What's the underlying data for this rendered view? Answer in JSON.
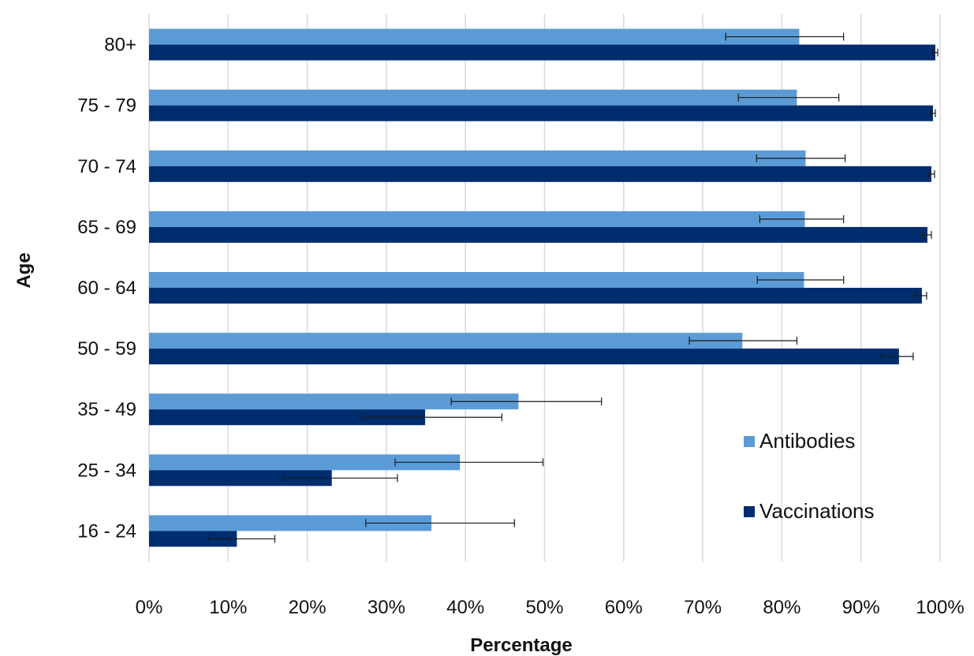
{
  "chart_data": {
    "type": "bar",
    "orientation": "horizontal",
    "title": "",
    "xlabel": "Percentage",
    "ylabel": "Age",
    "xlim": [
      0,
      100
    ],
    "x_ticks": [
      "0%",
      "10%",
      "20%",
      "30%",
      "40%",
      "50%",
      "60%",
      "70%",
      "80%",
      "90%",
      "100%"
    ],
    "grid": "vertical",
    "legend_position": "right",
    "categories": [
      "80+",
      "75 - 79",
      "70 - 74",
      "65 - 69",
      "60 - 64",
      "50 - 59",
      "35 - 49",
      "25 - 34",
      "16 - 24"
    ],
    "series": [
      {
        "name": "Antibodies",
        "color": "#5b9bd5",
        "values": [
          82.2,
          81.9,
          83.0,
          82.9,
          82.8,
          75.0,
          46.7,
          39.3,
          35.7
        ],
        "error_low": [
          72.9,
          74.5,
          76.8,
          77.2,
          76.9,
          68.3,
          38.2,
          31.1,
          27.4
        ],
        "error_high": [
          87.8,
          87.2,
          88.0,
          87.8,
          87.8,
          81.9,
          57.2,
          49.8,
          46.2
        ]
      },
      {
        "name": "Vaccinations",
        "color": "#002d6e",
        "values": [
          99.4,
          99.1,
          98.9,
          98.4,
          97.7,
          94.8,
          34.9,
          23.1,
          11.1
        ],
        "error_low": [
          99.1,
          98.8,
          98.5,
          97.8,
          96.8,
          92.6,
          26.9,
          17.0,
          7.6
        ],
        "error_high": [
          99.7,
          99.4,
          99.3,
          98.9,
          98.3,
          96.6,
          44.6,
          31.4,
          15.9
        ]
      }
    ]
  }
}
